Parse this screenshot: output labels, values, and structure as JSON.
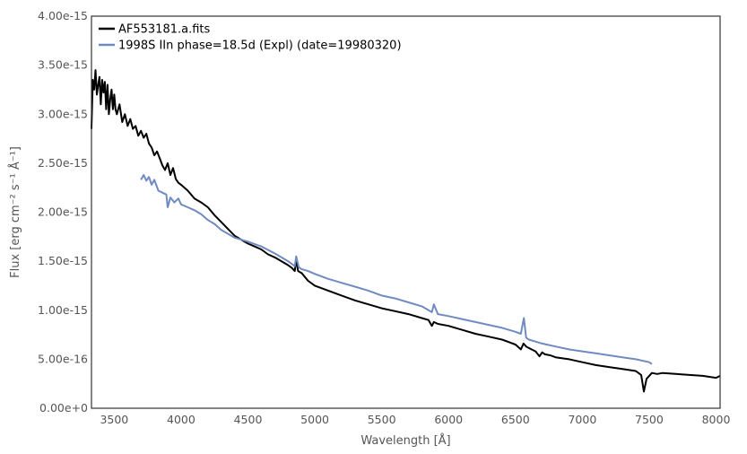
{
  "chart_data": {
    "type": "line",
    "title": "",
    "xlabel": "Wavelength [Å]",
    "ylabel": "Flux [erg cm⁻² s⁻¹ Å⁻¹]",
    "xlim": [
      3330,
      8030
    ],
    "ylim": [
      0,
      4e-15
    ],
    "grid": false,
    "legend_position": "top-left",
    "x_ticks": [
      3500,
      4000,
      4500,
      5000,
      5500,
      6000,
      6500,
      7000,
      7500,
      8000
    ],
    "x_tick_labels": [
      "3500",
      "4000",
      "4500",
      "5000",
      "5500",
      "6000",
      "6500",
      "7000",
      "7500",
      "8000"
    ],
    "y_ticks": [
      0,
      5e-16,
      1e-15,
      1.5e-15,
      2e-15,
      2.5e-15,
      3e-15,
      3.5e-15,
      4e-15
    ],
    "y_tick_labels": [
      "0.00e+0",
      "5.00e-16",
      "1.00e-15",
      "1.50e-15",
      "2.00e-15",
      "2.50e-15",
      "3.00e-15",
      "3.50e-15",
      "4.00e-15"
    ],
    "series": [
      {
        "name": "AF553181.a.fits",
        "color": "#000000",
        "x": [
          3330,
          3340,
          3350,
          3360,
          3370,
          3380,
          3390,
          3400,
          3410,
          3420,
          3430,
          3440,
          3450,
          3460,
          3470,
          3480,
          3490,
          3500,
          3510,
          3520,
          3540,
          3560,
          3580,
          3600,
          3620,
          3640,
          3660,
          3680,
          3700,
          3720,
          3740,
          3760,
          3780,
          3800,
          3820,
          3840,
          3860,
          3880,
          3900,
          3920,
          3940,
          3960,
          3980,
          4000,
          4050,
          4100,
          4150,
          4200,
          4250,
          4300,
          4350,
          4400,
          4450,
          4500,
          4550,
          4600,
          4650,
          4700,
          4750,
          4800,
          4830,
          4850,
          4861,
          4875,
          4900,
          4950,
          5000,
          5100,
          5200,
          5300,
          5400,
          5500,
          5600,
          5700,
          5800,
          5850,
          5875,
          5890,
          5920,
          6000,
          6100,
          6200,
          6300,
          6400,
          6500,
          6540,
          6560,
          6580,
          6620,
          6650,
          6680,
          6700,
          6720,
          6760,
          6800,
          6900,
          7000,
          7100,
          7200,
          7300,
          7400,
          7440,
          7460,
          7480,
          7520,
          7560,
          7600,
          7700,
          7800,
          7900,
          8000,
          8030
        ],
        "y": [
          2.85e-15,
          3.35e-15,
          3.25e-15,
          3.45e-15,
          3.2e-15,
          3.3e-15,
          3.38e-15,
          3.1e-15,
          3.35e-15,
          3.22e-15,
          3.33e-15,
          3.05e-15,
          3.3e-15,
          3e-15,
          3.15e-15,
          3.25e-15,
          3.05e-15,
          3.2e-15,
          3.05e-15,
          3e-15,
          3.1e-15,
          2.92e-15,
          3e-15,
          2.88e-15,
          2.95e-15,
          2.85e-15,
          2.88e-15,
          2.78e-15,
          2.83e-15,
          2.76e-15,
          2.8e-15,
          2.7e-15,
          2.66e-15,
          2.58e-15,
          2.62e-15,
          2.55e-15,
          2.48e-15,
          2.43e-15,
          2.5e-15,
          2.38e-15,
          2.45e-15,
          2.34e-15,
          2.3e-15,
          2.28e-15,
          2.22e-15,
          2.14e-15,
          2.1e-15,
          2.05e-15,
          1.97e-15,
          1.9e-15,
          1.83e-15,
          1.76e-15,
          1.72e-15,
          1.68e-15,
          1.65e-15,
          1.62e-15,
          1.57e-15,
          1.54e-15,
          1.5e-15,
          1.46e-15,
          1.43e-15,
          1.4e-15,
          1.52e-15,
          1.4e-15,
          1.38e-15,
          1.3e-15,
          1.25e-15,
          1.2e-15,
          1.15e-15,
          1.1e-15,
          1.06e-15,
          1.02e-15,
          9.9e-16,
          9.6e-16,
          9.2e-16,
          9e-16,
          8.4e-16,
          8.8e-16,
          8.6e-16,
          8.4e-16,
          8e-16,
          7.6e-16,
          7.3e-16,
          7e-16,
          6.5e-16,
          6e-16,
          6.6e-16,
          6.3e-16,
          6e-16,
          5.8e-16,
          5.3e-16,
          5.7e-16,
          5.5e-16,
          5.4e-16,
          5.2e-16,
          5e-16,
          4.7e-16,
          4.4e-16,
          4.2e-16,
          4e-16,
          3.8e-16,
          3.4e-16,
          1.7e-16,
          3e-16,
          3.6e-16,
          3.5e-16,
          3.6e-16,
          3.5e-16,
          3.4e-16,
          3.3e-16,
          3.1e-16,
          3.3e-16
        ]
      },
      {
        "name": "1998S  IIn  phase=18.5d (Expl)  (date=19980320)",
        "color": "#6f8bc2",
        "x": [
          3700,
          3720,
          3740,
          3760,
          3780,
          3800,
          3830,
          3860,
          3890,
          3900,
          3920,
          3950,
          3980,
          4000,
          4050,
          4100,
          4150,
          4200,
          4250,
          4300,
          4350,
          4400,
          4450,
          4500,
          4600,
          4700,
          4800,
          4850,
          4861,
          4880,
          4900,
          4950,
          5000,
          5100,
          5200,
          5300,
          5400,
          5500,
          5600,
          5700,
          5800,
          5850,
          5875,
          5890,
          5920,
          6000,
          6100,
          6200,
          6300,
          6400,
          6500,
          6540,
          6563,
          6580,
          6600,
          6700,
          6800,
          6900,
          7000,
          7100,
          7200,
          7300,
          7400,
          7500,
          7520
        ],
        "y": [
          2.33e-15,
          2.38e-15,
          2.32e-15,
          2.36e-15,
          2.28e-15,
          2.33e-15,
          2.22e-15,
          2.2e-15,
          2.18e-15,
          2.05e-15,
          2.15e-15,
          2.1e-15,
          2.14e-15,
          2.08e-15,
          2.05e-15,
          2.02e-15,
          1.98e-15,
          1.92e-15,
          1.88e-15,
          1.82e-15,
          1.78e-15,
          1.74e-15,
          1.72e-15,
          1.7e-15,
          1.65e-15,
          1.58e-15,
          1.5e-15,
          1.45e-15,
          1.55e-15,
          1.44e-15,
          1.42e-15,
          1.4e-15,
          1.37e-15,
          1.32e-15,
          1.28e-15,
          1.24e-15,
          1.2e-15,
          1.15e-15,
          1.12e-15,
          1.08e-15,
          1.04e-15,
          1e-15,
          9.8e-16,
          1.06e-15,
          9.6e-16,
          9.4e-16,
          9.1e-16,
          8.8e-16,
          8.5e-16,
          8.2e-16,
          7.8e-16,
          7.6e-16,
          9.2e-16,
          7.2e-16,
          7e-16,
          6.6e-16,
          6.3e-16,
          6e-16,
          5.8e-16,
          5.6e-16,
          5.4e-16,
          5.2e-16,
          5e-16,
          4.7e-16,
          4.5e-16
        ]
      }
    ]
  }
}
